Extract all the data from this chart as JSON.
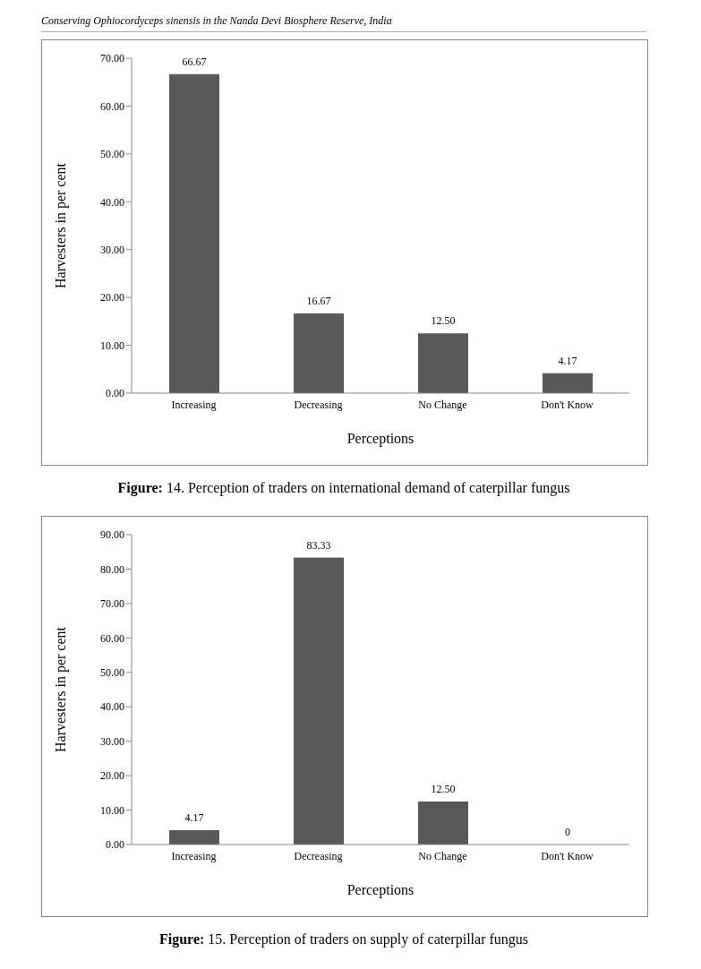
{
  "chart_data": [
    {
      "type": "bar",
      "title": "Figure: 14. Perception of traders on international demand of caterpillar fungus",
      "annotations": [
        "Conserving Ophiocordyceps sinensis in the Nanda Devi Biosphere Reserve, India"
      ],
      "xlabel": "Perceptions",
      "ylabel": "Harvesters in per cent",
      "categories": [
        "Increasing",
        "Decreasing",
        "No Change",
        "Don't Know"
      ],
      "values": [
        66.67,
        16.67,
        12.5,
        4.17
      ],
      "value_labels": [
        "66.67",
        "16.67",
        "12.50",
        "4.17"
      ],
      "color": "#595959",
      "ylim": [
        0,
        70
      ],
      "yticks": [
        {
          "value": 0,
          "label": "0.00"
        },
        {
          "value": 10,
          "label": "10.00"
        },
        {
          "value": 20,
          "label": "20.00"
        },
        {
          "value": 30,
          "label": "30.00"
        },
        {
          "value": 40,
          "label": "40.00"
        },
        {
          "value": 50,
          "label": "50.00"
        },
        {
          "value": 60,
          "label": "60.00"
        },
        {
          "value": 70,
          "label": "70.00"
        }
      ],
      "grid": false,
      "legend": false
    },
    {
      "type": "bar",
      "title": "Figure: 15. Perception of traders on supply of caterpillar fungus",
      "xlabel": "Perceptions",
      "ylabel": "Harvesters in per cent",
      "categories": [
        "Increasing",
        "Decreasing",
        "No Change",
        "Don't Know"
      ],
      "values": [
        4.17,
        83.33,
        12.5,
        0
      ],
      "value_labels": [
        "4.17",
        "83.33",
        "12.50",
        "0"
      ],
      "color": "#595959",
      "ylim": [
        0,
        90
      ],
      "yticks": [
        {
          "value": 0,
          "label": "0.00"
        },
        {
          "value": 10,
          "label": "10.00"
        },
        {
          "value": 20,
          "label": "20.00"
        },
        {
          "value": 30,
          "label": "30.00"
        },
        {
          "value": 40,
          "label": "40.00"
        },
        {
          "value": 50,
          "label": "50.00"
        },
        {
          "value": 60,
          "label": "60.00"
        },
        {
          "value": 70,
          "label": "70.00"
        },
        {
          "value": 80,
          "label": "80.00"
        },
        {
          "value": 90,
          "label": "90.00"
        }
      ],
      "grid": false,
      "legend": false
    }
  ]
}
